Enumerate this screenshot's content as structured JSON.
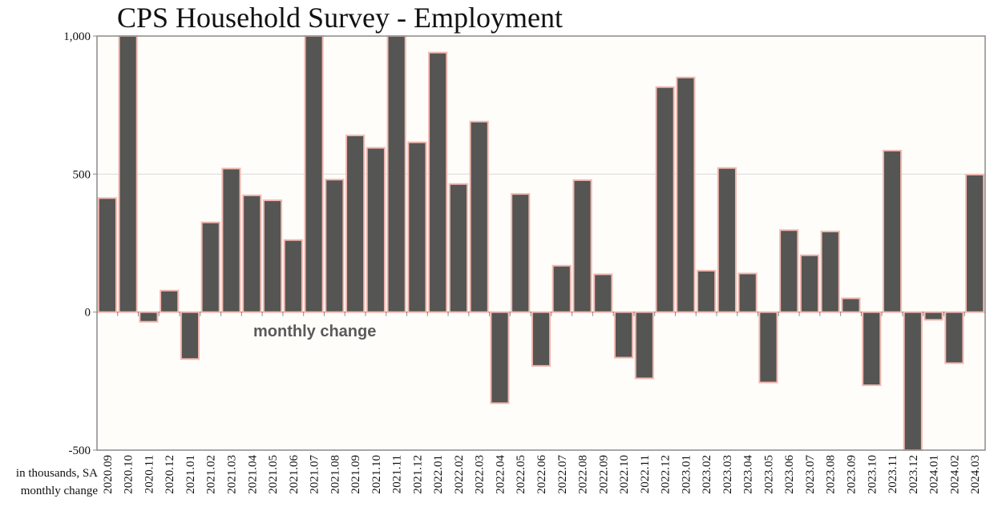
{
  "title": "CPS Household Survey - Employment",
  "footnote": {
    "line1": "in thousands, SA",
    "line2": "monthly change"
  },
  "colors": {
    "bar": "#555553",
    "bar_outline": "#f2b8b0",
    "plot_bg": "#fefdfa",
    "grid": "#dadada",
    "frame": "#8a8a8a",
    "annotation": "#5a5a5a"
  },
  "chart_data": {
    "type": "bar",
    "title": "CPS Household Survey - Employment",
    "ylim": [
      -500,
      1000
    ],
    "yticks": [
      -500,
      0,
      500,
      1000
    ],
    "ytick_labels": [
      "-500",
      "0",
      "500",
      "1,000"
    ],
    "grid": true,
    "annotation": "monthly change",
    "categories": [
      "2020.09",
      "2020.10",
      "2020.11",
      "2020.12",
      "2021.01",
      "2021.02",
      "2021.03",
      "2021.04",
      "2021.05",
      "2021.06",
      "2021.07",
      "2021.08",
      "2021.09",
      "2021.10",
      "2021.11",
      "2021.12",
      "2022.01",
      "2022.02",
      "2022.03",
      "2022.04",
      "2022.05",
      "2022.06",
      "2022.07",
      "2022.08",
      "2022.09",
      "2022.10",
      "2022.11",
      "2022.12",
      "2023.01",
      "2023.02",
      "2023.03",
      "2023.04",
      "2023.05",
      "2023.06",
      "2023.07",
      "2023.08",
      "2023.09",
      "2023.10",
      "2023.11",
      "2023.12",
      "2024.01",
      "2024.02",
      "2024.03"
    ],
    "values": [
      413,
      1000,
      -35,
      78,
      -170,
      325,
      520,
      423,
      405,
      261,
      1000,
      480,
      640,
      595,
      1000,
      615,
      940,
      464,
      690,
      -330,
      428,
      -195,
      168,
      478,
      137,
      -165,
      -240,
      815,
      850,
      150,
      522,
      140,
      -255,
      297,
      206,
      292,
      50,
      -265,
      585,
      -500,
      -28,
      -185,
      498
    ]
  }
}
